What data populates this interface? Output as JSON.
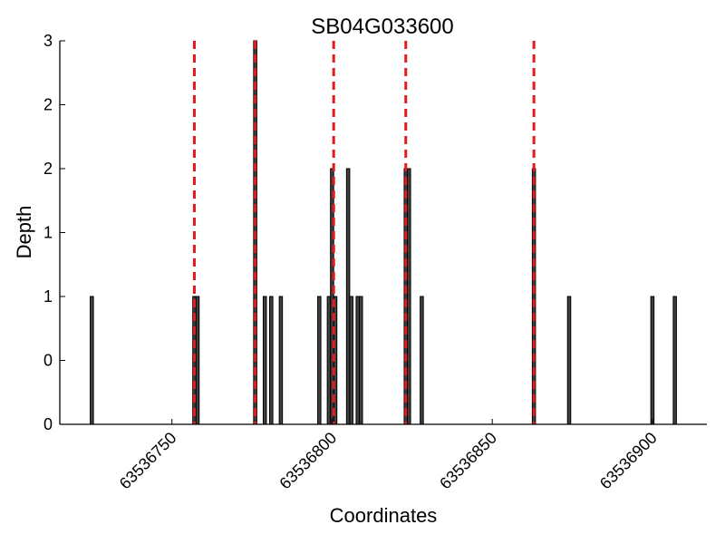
{
  "chart_data": {
    "type": "bar",
    "title": "SB04G033600",
    "xlabel": "Coordinates",
    "ylabel": "Depth",
    "xlim": [
      63536715,
      63536917
    ],
    "ylim": [
      0,
      3
    ],
    "y_ticks": [
      0,
      0.5,
      1,
      1.5,
      2,
      2.5,
      3
    ],
    "y_tick_labels": [
      "0",
      "0",
      "1",
      "1",
      "2",
      "2",
      "3"
    ],
    "x_ticks": [
      63536750,
      63536800,
      63536850,
      63536900
    ],
    "x_tick_labels": [
      "63536750",
      "63536800",
      "63536850",
      "63536900"
    ],
    "grid": false,
    "legend": "none",
    "colors": {
      "bar_fill": "#404040",
      "bar_edge": "#000000",
      "marker_line": "#e41a1c"
    },
    "bars": [
      {
        "x": 63536725,
        "depth": 1
      },
      {
        "x": 63536757,
        "depth": 1
      },
      {
        "x": 63536758,
        "depth": 1
      },
      {
        "x": 63536776,
        "depth": 3
      },
      {
        "x": 63536779,
        "depth": 1
      },
      {
        "x": 63536781,
        "depth": 1
      },
      {
        "x": 63536784,
        "depth": 1
      },
      {
        "x": 63536796,
        "depth": 1
      },
      {
        "x": 63536799,
        "depth": 1
      },
      {
        "x": 63536800,
        "depth": 2
      },
      {
        "x": 63536801,
        "depth": 1
      },
      {
        "x": 63536805,
        "depth": 2
      },
      {
        "x": 63536806,
        "depth": 1
      },
      {
        "x": 63536808,
        "depth": 1
      },
      {
        "x": 63536809,
        "depth": 1
      },
      {
        "x": 63536823,
        "depth": 2
      },
      {
        "x": 63536824,
        "depth": 2
      },
      {
        "x": 63536828,
        "depth": 1
      },
      {
        "x": 63536863,
        "depth": 2
      },
      {
        "x": 63536874,
        "depth": 1
      },
      {
        "x": 63536900,
        "depth": 1
      },
      {
        "x": 63536907,
        "depth": 1
      }
    ],
    "marker_positions": [
      63536757,
      63536776,
      63536800.5,
      63536823,
      63536863
    ]
  }
}
